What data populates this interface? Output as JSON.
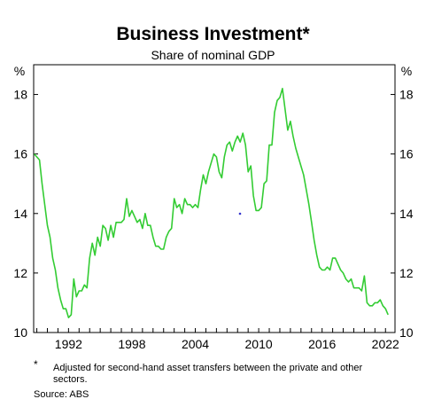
{
  "chart_data": {
    "type": "line",
    "title": "Business Investment*",
    "subtitle": "Share of nominal GDP",
    "ylabel_left": "%",
    "ylabel_right": "%",
    "ylim": [
      10,
      19
    ],
    "yticks": [
      10,
      12,
      14,
      16,
      18
    ],
    "xlim": [
      1988.7,
      2022.9
    ],
    "xticks": [
      1992,
      1998,
      2004,
      2010,
      2016,
      2022
    ],
    "grid": false,
    "line_color": "#33cc33",
    "series": [
      {
        "values": [
          [
            1988.75,
            16.0
          ],
          [
            1989.0,
            15.9
          ],
          [
            1989.25,
            15.8
          ],
          [
            1989.5,
            15.0
          ],
          [
            1989.75,
            14.3
          ],
          [
            1990.0,
            13.6
          ],
          [
            1990.25,
            13.2
          ],
          [
            1990.5,
            12.5
          ],
          [
            1990.75,
            12.1
          ],
          [
            1991.0,
            11.5
          ],
          [
            1991.25,
            11.1
          ],
          [
            1991.5,
            10.8
          ],
          [
            1991.75,
            10.8
          ],
          [
            1992.0,
            10.5
          ],
          [
            1992.25,
            10.6
          ],
          [
            1992.5,
            11.8
          ],
          [
            1992.75,
            11.2
          ],
          [
            1993.0,
            11.4
          ],
          [
            1993.25,
            11.4
          ],
          [
            1993.5,
            11.6
          ],
          [
            1993.75,
            11.5
          ],
          [
            1994.0,
            12.5
          ],
          [
            1994.25,
            13.0
          ],
          [
            1994.5,
            12.6
          ],
          [
            1994.75,
            13.2
          ],
          [
            1995.0,
            12.9
          ],
          [
            1995.25,
            13.6
          ],
          [
            1995.5,
            13.5
          ],
          [
            1995.75,
            13.1
          ],
          [
            1996.0,
            13.6
          ],
          [
            1996.25,
            13.2
          ],
          [
            1996.5,
            13.7
          ],
          [
            1996.75,
            13.7
          ],
          [
            1997.0,
            13.7
          ],
          [
            1997.25,
            13.8
          ],
          [
            1997.5,
            14.5
          ],
          [
            1997.75,
            13.9
          ],
          [
            1998.0,
            14.1
          ],
          [
            1998.25,
            13.9
          ],
          [
            1998.5,
            13.7
          ],
          [
            1998.75,
            13.8
          ],
          [
            1999.0,
            13.5
          ],
          [
            1999.25,
            14.0
          ],
          [
            1999.5,
            13.6
          ],
          [
            1999.75,
            13.6
          ],
          [
            2000.0,
            13.2
          ],
          [
            2000.25,
            12.9
          ],
          [
            2000.5,
            12.9
          ],
          [
            2000.75,
            12.8
          ],
          [
            2001.0,
            12.8
          ],
          [
            2001.25,
            13.2
          ],
          [
            2001.5,
            13.4
          ],
          [
            2001.75,
            13.5
          ],
          [
            2002.0,
            14.5
          ],
          [
            2002.25,
            14.2
          ],
          [
            2002.5,
            14.3
          ],
          [
            2002.75,
            14.0
          ],
          [
            2003.0,
            14.5
          ],
          [
            2003.25,
            14.3
          ],
          [
            2003.5,
            14.3
          ],
          [
            2003.75,
            14.2
          ],
          [
            2004.0,
            14.3
          ],
          [
            2004.25,
            14.2
          ],
          [
            2004.5,
            14.8
          ],
          [
            2004.75,
            15.3
          ],
          [
            2005.0,
            15.0
          ],
          [
            2005.25,
            15.4
          ],
          [
            2005.5,
            15.7
          ],
          [
            2005.75,
            16.0
          ],
          [
            2006.0,
            15.9
          ],
          [
            2006.25,
            15.4
          ],
          [
            2006.5,
            15.2
          ],
          [
            2006.75,
            15.9
          ],
          [
            2007.0,
            16.3
          ],
          [
            2007.25,
            16.4
          ],
          [
            2007.5,
            16.1
          ],
          [
            2007.75,
            16.4
          ],
          [
            2008.0,
            16.6
          ],
          [
            2008.25,
            16.4
          ],
          [
            2008.5,
            16.7
          ],
          [
            2008.75,
            16.3
          ],
          [
            2009.0,
            15.4
          ],
          [
            2009.25,
            15.6
          ],
          [
            2009.5,
            14.6
          ],
          [
            2009.75,
            14.1
          ],
          [
            2010.0,
            14.1
          ],
          [
            2010.25,
            14.2
          ],
          [
            2010.5,
            15.0
          ],
          [
            2010.75,
            15.1
          ],
          [
            2011.0,
            16.3
          ],
          [
            2011.25,
            16.3
          ],
          [
            2011.5,
            17.4
          ],
          [
            2011.75,
            17.8
          ],
          [
            2012.0,
            17.9
          ],
          [
            2012.25,
            18.2
          ],
          [
            2012.5,
            17.5
          ],
          [
            2012.75,
            16.8
          ],
          [
            2013.0,
            17.1
          ],
          [
            2013.25,
            16.6
          ],
          [
            2013.5,
            16.2
          ],
          [
            2013.75,
            15.9
          ],
          [
            2014.0,
            15.6
          ],
          [
            2014.25,
            15.3
          ],
          [
            2014.5,
            14.8
          ],
          [
            2014.75,
            14.3
          ],
          [
            2015.0,
            13.7
          ],
          [
            2015.25,
            13.1
          ],
          [
            2015.5,
            12.6
          ],
          [
            2015.75,
            12.2
          ],
          [
            2016.0,
            12.1
          ],
          [
            2016.25,
            12.1
          ],
          [
            2016.5,
            12.2
          ],
          [
            2016.75,
            12.1
          ],
          [
            2017.0,
            12.5
          ],
          [
            2017.25,
            12.5
          ],
          [
            2017.5,
            12.3
          ],
          [
            2017.75,
            12.1
          ],
          [
            2018.0,
            12.0
          ],
          [
            2018.25,
            11.8
          ],
          [
            2018.5,
            11.7
          ],
          [
            2018.75,
            11.8
          ],
          [
            2019.0,
            11.5
          ],
          [
            2019.25,
            11.5
          ],
          [
            2019.5,
            11.5
          ],
          [
            2019.75,
            11.4
          ],
          [
            2020.0,
            11.9
          ],
          [
            2020.25,
            11.0
          ],
          [
            2020.5,
            10.9
          ],
          [
            2020.75,
            10.9
          ],
          [
            2021.0,
            11.0
          ],
          [
            2021.25,
            11.0
          ],
          [
            2021.5,
            11.1
          ],
          [
            2021.75,
            10.9
          ],
          [
            2022.0,
            10.8
          ],
          [
            2022.25,
            10.6
          ]
        ]
      }
    ]
  },
  "footnote_marker": "*",
  "footnote": "Adjusted for second-hand asset transfers between the private and other sectors.",
  "source": "Source:    ABS"
}
